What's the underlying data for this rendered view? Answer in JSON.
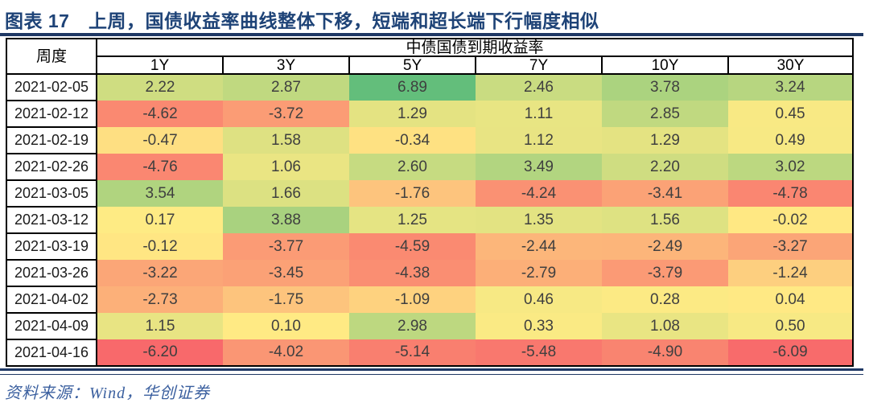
{
  "figure": {
    "title": "图表 17　上周，国债收益率曲线整体下移，短端和超长端下行幅度相似"
  },
  "source_line": "资料来源：Wind，华创证券",
  "chart_data": {
    "type": "heatmap",
    "title": "上周，国债收益率曲线整体下移，短端和超长端下行幅度相似",
    "figure_number": "图表 17",
    "corner_header": "周度",
    "group_header": "中债国债到期收益率",
    "columns": [
      "1Y",
      "3Y",
      "5Y",
      "7Y",
      "10Y",
      "30Y"
    ],
    "rows": [
      {
        "date": "2021-02-05",
        "values": [
          2.22,
          2.87,
          6.89,
          2.46,
          3.78,
          3.24
        ]
      },
      {
        "date": "2021-02-12",
        "values": [
          -4.62,
          -3.72,
          1.29,
          1.11,
          2.85,
          0.45
        ]
      },
      {
        "date": "2021-02-19",
        "values": [
          -0.47,
          1.58,
          -0.34,
          1.12,
          1.29,
          0.49
        ]
      },
      {
        "date": "2021-02-26",
        "values": [
          -4.76,
          1.06,
          2.6,
          3.49,
          2.2,
          3.02
        ]
      },
      {
        "date": "2021-03-05",
        "values": [
          3.54,
          1.66,
          -1.76,
          -4.24,
          -3.41,
          -4.78
        ]
      },
      {
        "date": "2021-03-12",
        "values": [
          0.17,
          3.88,
          1.25,
          1.35,
          1.56,
          -0.02
        ]
      },
      {
        "date": "2021-03-19",
        "values": [
          -0.12,
          -3.77,
          -4.59,
          -2.44,
          -2.49,
          -3.27
        ]
      },
      {
        "date": "2021-03-26",
        "values": [
          -3.22,
          -3.45,
          -4.38,
          -2.79,
          -3.79,
          -1.24
        ]
      },
      {
        "date": "2021-04-02",
        "values": [
          -2.73,
          -1.75,
          -1.09,
          0.46,
          0.28,
          0.04
        ]
      },
      {
        "date": "2021-04-09",
        "values": [
          1.15,
          0.1,
          2.98,
          0.33,
          1.08,
          0.5
        ]
      },
      {
        "date": "2021-04-16",
        "values": [
          -6.2,
          -4.02,
          -5.14,
          -5.48,
          -4.9,
          -6.09
        ]
      }
    ],
    "color_scale": {
      "min_value": -6.2,
      "mid_value": 0.135,
      "max_value": 6.89,
      "min_color": "#F8696B",
      "mid_color": "#FFEB84",
      "max_color": "#63BE7B"
    },
    "value_decimals": 2
  },
  "colors": {
    "title_text": "#1E4377",
    "rule": "#1F3864",
    "source_text": "#3A5F9F",
    "cell_text": "#3F3F3F",
    "border": "#000000"
  }
}
